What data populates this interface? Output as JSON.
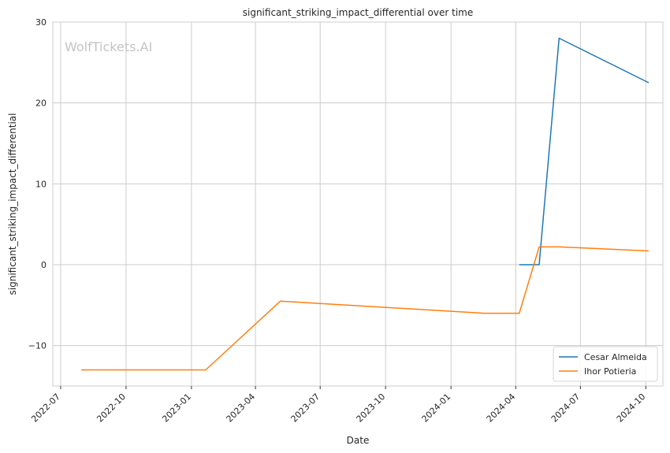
{
  "chart_data": {
    "type": "line",
    "title": "significant_striking_impact_differential over time",
    "xlabel": "Date",
    "ylabel": "significant_striking_impact_differential",
    "watermark": "WolfTickets.AI",
    "x_ticks": [
      "2022-07",
      "2022-10",
      "2023-01",
      "2023-04",
      "2023-07",
      "2023-10",
      "2024-01",
      "2024-04",
      "2024-07",
      "2024-10"
    ],
    "y_ticks": [
      -10,
      0,
      10,
      20,
      30
    ],
    "y_tick_labels": [
      "−10",
      "0",
      "10",
      "20",
      "30"
    ],
    "xlim": [
      "2022-06-20",
      "2024-10-25"
    ],
    "ylim": [
      -15,
      30
    ],
    "grid": true,
    "legend_position": "bottom-right",
    "series": [
      {
        "name": "Cesar Almeida",
        "color": "#1f77b4",
        "points": [
          {
            "x": "2024-04-06",
            "y": 0
          },
          {
            "x": "2024-05-04",
            "y": 0
          },
          {
            "x": "2024-06-01",
            "y": 28
          },
          {
            "x": "2024-10-05",
            "y": 22.5
          }
        ]
      },
      {
        "name": "Ihor Potieria",
        "color": "#ff7f0e",
        "points": [
          {
            "x": "2022-07-30",
            "y": -13
          },
          {
            "x": "2023-01-21",
            "y": -13
          },
          {
            "x": "2023-05-06",
            "y": -4.5
          },
          {
            "x": "2024-02-17",
            "y": -6
          },
          {
            "x": "2024-04-06",
            "y": -6
          },
          {
            "x": "2024-05-04",
            "y": 2.2
          },
          {
            "x": "2024-06-01",
            "y": 2.2
          },
          {
            "x": "2024-10-05",
            "y": 1.7
          }
        ]
      }
    ]
  }
}
